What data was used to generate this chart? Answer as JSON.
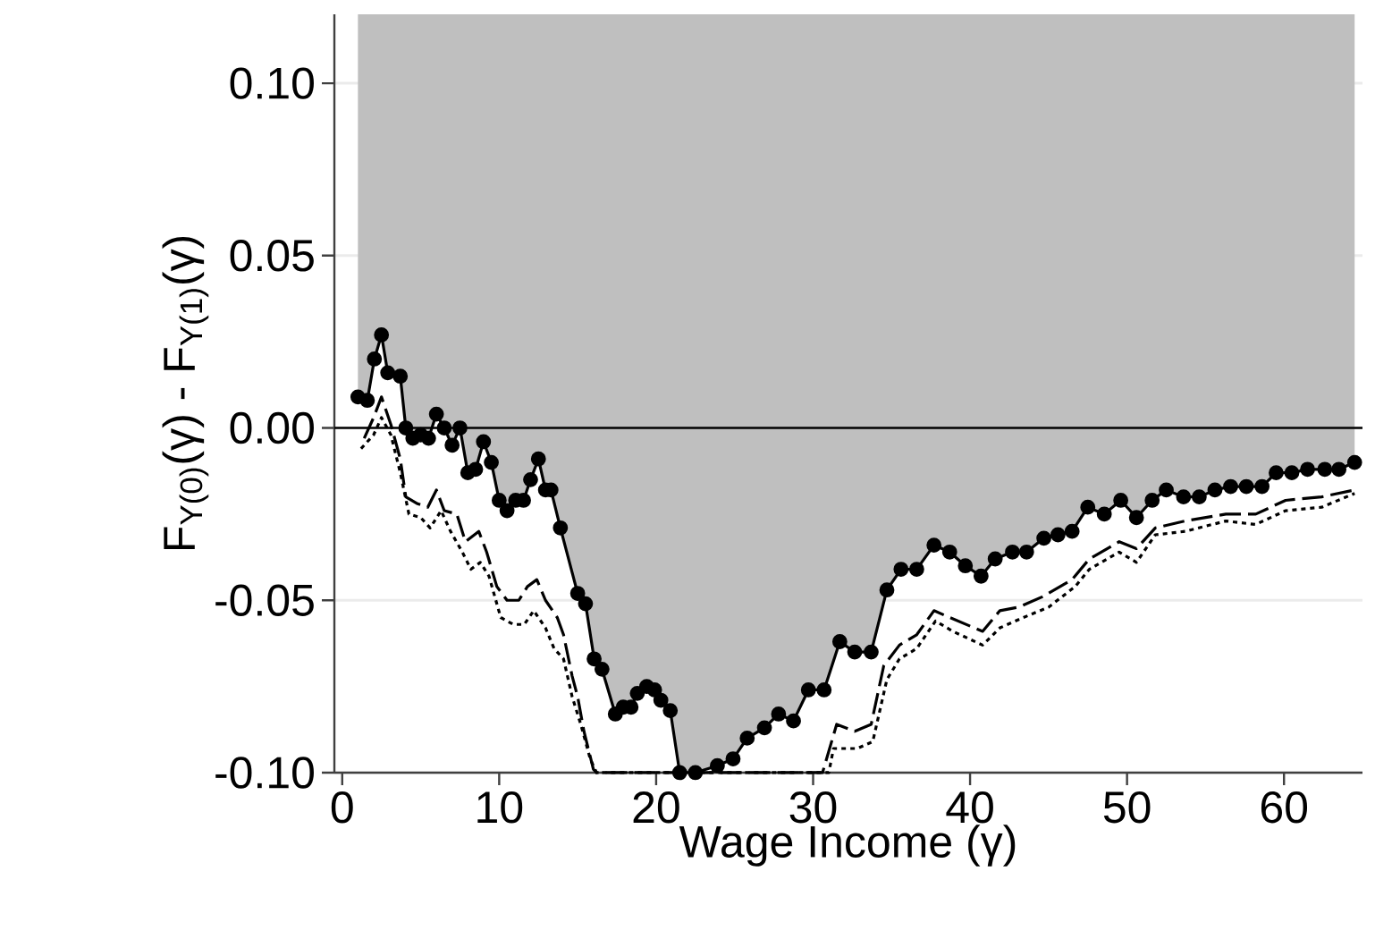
{
  "chart_data": {
    "type": "line",
    "xlabel": "Wage Income (γ)",
    "ylabel": "F$_{Y(0)}$(γ) - F$_{Y(1)}$(γ)",
    "xlim": [
      -0.5,
      65
    ],
    "ylim": [
      -0.1,
      0.12
    ],
    "xticks": [
      0,
      10,
      20,
      30,
      40,
      50,
      60
    ],
    "yticks": [
      {
        "value": -0.1,
        "label": "-0.10"
      },
      {
        "value": -0.05,
        "label": "-0.05"
      },
      {
        "value": 0.0,
        "label": "0.00"
      },
      {
        "value": 0.05,
        "label": "0.05"
      },
      {
        "value": 0.1,
        "label": "0.10"
      }
    ],
    "grid": "y",
    "ref_lines": [
      {
        "axis": "y",
        "value": 0,
        "color": "#000000"
      }
    ],
    "series": [
      {
        "color": "#000000",
        "marker": "circle",
        "line_style": "solid",
        "x": [
          1.0,
          1.6,
          2.05,
          2.5,
          2.9,
          3.7,
          4.05,
          4.5,
          5.0,
          5.5,
          6.0,
          6.5,
          7.0,
          7.5,
          8.0,
          8.5,
          9.0,
          9.5,
          10.0,
          10.5,
          11.05,
          11.55,
          12.0,
          12.5,
          12.95,
          13.3,
          13.9,
          15.0,
          15.5,
          16.05,
          16.55,
          17.4,
          17.9,
          18.4,
          18.8,
          19.4,
          19.9,
          20.3,
          20.9,
          21.5,
          22.5,
          23.9,
          24.9,
          25.8,
          26.9,
          27.8,
          28.75,
          29.7,
          30.7,
          31.7,
          32.65,
          33.7,
          34.7,
          35.6,
          36.6,
          37.7,
          38.7,
          39.7,
          40.7,
          41.6,
          42.7,
          43.6,
          44.7,
          45.6,
          46.5,
          47.5,
          48.55,
          49.6,
          50.6,
          51.6,
          52.5,
          53.6,
          54.6,
          55.6,
          56.6,
          57.6,
          58.6,
          59.5,
          60.5,
          61.5,
          62.6,
          63.5,
          64.5
        ],
        "values": [
          0.009,
          0.008,
          0.02,
          0.027,
          0.016,
          0.015,
          0.0,
          -0.003,
          -0.002,
          -0.003,
          0.004,
          0.0,
          -0.005,
          0.0,
          -0.013,
          -0.012,
          -0.004,
          -0.01,
          -0.021,
          -0.024,
          -0.021,
          -0.021,
          -0.015,
          -0.009,
          -0.018,
          -0.018,
          -0.029,
          -0.048,
          -0.051,
          -0.067,
          -0.07,
          -0.083,
          -0.081,
          -0.081,
          -0.077,
          -0.075,
          -0.076,
          -0.079,
          -0.082,
          -0.1,
          -0.1,
          -0.098,
          -0.096,
          -0.09,
          -0.087,
          -0.083,
          -0.085,
          -0.076,
          -0.076,
          -0.062,
          -0.065,
          -0.065,
          -0.047,
          -0.041,
          -0.041,
          -0.034,
          -0.036,
          -0.04,
          -0.043,
          -0.038,
          -0.036,
          -0.036,
          -0.032,
          -0.031,
          -0.03,
          -0.023,
          -0.025,
          -0.021,
          -0.026,
          -0.021,
          -0.018,
          -0.02,
          -0.02,
          -0.018,
          -0.017,
          -0.017,
          -0.017,
          -0.013,
          -0.013,
          -0.012,
          -0.012,
          -0.012,
          -0.01
        ],
        "lower": [
          0.009,
          0.008,
          0.02,
          0.027,
          0.016,
          0.015,
          0.0,
          -0.003,
          -0.002,
          -0.003,
          0.004,
          0.0,
          -0.005,
          0.0,
          -0.013,
          -0.012,
          -0.004,
          -0.01,
          -0.021,
          -0.024,
          -0.021,
          -0.021,
          -0.015,
          -0.009,
          -0.018,
          -0.018,
          -0.029,
          -0.048,
          -0.051,
          -0.067,
          -0.07,
          -0.083,
          -0.081,
          -0.081,
          -0.077,
          -0.075,
          -0.076,
          -0.079,
          -0.082,
          -0.1,
          -0.1,
          -0.098,
          -0.096,
          -0.09,
          -0.087,
          -0.083,
          -0.085,
          -0.076,
          -0.076,
          -0.062,
          -0.065,
          -0.065,
          -0.047,
          -0.041,
          -0.041,
          -0.034,
          -0.036,
          -0.04,
          -0.043,
          -0.038,
          -0.036,
          -0.036,
          -0.032,
          -0.031,
          -0.03,
          -0.023,
          -0.025,
          -0.021,
          -0.026,
          -0.021,
          -0.018,
          -0.02,
          -0.02,
          -0.018,
          -0.017,
          -0.017,
          -0.017,
          -0.013,
          -0.013,
          -0.012,
          -0.012,
          -0.012,
          -0.01
        ],
        "upper": [
          0.12,
          0.12,
          0.12,
          0.12,
          0.12,
          0.12,
          0.12,
          0.12,
          0.12,
          0.12,
          0.12,
          0.12,
          0.12,
          0.12,
          0.12,
          0.12,
          0.12,
          0.12,
          0.12,
          0.12,
          0.12,
          0.12,
          0.12,
          0.12,
          0.12,
          0.12,
          0.12,
          0.12,
          0.12,
          0.12,
          0.12,
          0.12,
          0.12,
          0.12,
          0.12,
          0.12,
          0.12,
          0.12,
          0.12,
          0.12,
          0.12,
          0.12,
          0.12,
          0.12,
          0.12,
          0.12,
          0.12,
          0.12,
          0.12,
          0.12,
          0.12,
          0.12,
          0.12,
          0.12,
          0.12,
          0.12,
          0.12,
          0.12,
          0.12,
          0.12,
          0.12,
          0.12,
          0.12,
          0.12,
          0.12,
          0.12,
          0.12,
          0.12,
          0.12,
          0.12,
          0.12,
          0.12,
          0.12,
          0.12,
          0.12,
          0.12,
          0.12,
          0.12,
          0.12,
          0.12,
          0.12,
          0.12,
          0.12
        ]
      },
      {
        "color": "#000000",
        "marker": "none",
        "line_style": "dashed",
        "x": [
          1.4,
          2.0,
          2.5,
          3.1,
          3.7,
          4.05,
          4.8,
          5.45,
          6.0,
          6.5,
          7.3,
          7.85,
          8.7,
          9.2,
          9.85,
          10.5,
          11.25,
          11.8,
          12.4,
          12.95,
          13.7,
          14.1,
          14.65,
          15.0,
          15.4,
          16.0,
          16.2,
          30.6,
          31.5,
          32.65,
          33.7,
          34.5,
          35.5,
          36.6,
          37.7,
          38.7,
          40.8,
          41.9,
          43.1,
          44.6,
          46.5,
          47.6,
          49.5,
          50.6,
          51.8,
          53.7,
          56.3,
          58.2,
          60.1,
          62.4,
          64.5
        ],
        "values": [
          -0.003,
          0.003,
          0.009,
          0.001,
          -0.009,
          -0.02,
          -0.022,
          -0.023,
          -0.018,
          -0.024,
          -0.025,
          -0.033,
          -0.03,
          -0.036,
          -0.046,
          -0.05,
          -0.05,
          -0.046,
          -0.044,
          -0.05,
          -0.055,
          -0.06,
          -0.072,
          -0.078,
          -0.088,
          -0.099,
          -0.1,
          -0.1,
          -0.086,
          -0.088,
          -0.086,
          -0.069,
          -0.063,
          -0.06,
          -0.053,
          -0.055,
          -0.059,
          -0.053,
          -0.052,
          -0.049,
          -0.044,
          -0.038,
          -0.033,
          -0.035,
          -0.029,
          -0.027,
          -0.025,
          -0.025,
          -0.021,
          -0.02,
          -0.018
        ]
      },
      {
        "color": "#000000",
        "marker": "none",
        "line_style": "dotted",
        "x": [
          1.2,
          2.0,
          2.5,
          3.1,
          3.7,
          4.25,
          5.0,
          5.6,
          6.3,
          6.9,
          7.65,
          8.2,
          8.8,
          9.35,
          10.1,
          10.9,
          11.6,
          12.2,
          12.95,
          13.5,
          14.1,
          14.65,
          15.2,
          15.8,
          16.2,
          31.0,
          31.3,
          32.8,
          33.8,
          34.7,
          35.5,
          36.6,
          37.8,
          38.9,
          40.8,
          41.9,
          43.4,
          45.0,
          46.7,
          47.6,
          49.5,
          50.6,
          51.8,
          53.7,
          56.3,
          58.2,
          60.1,
          62.4,
          64.5
        ],
        "values": [
          -0.006,
          -0.002,
          0.003,
          -0.002,
          -0.013,
          -0.025,
          -0.026,
          -0.029,
          -0.024,
          -0.03,
          -0.036,
          -0.041,
          -0.039,
          -0.043,
          -0.055,
          -0.057,
          -0.057,
          -0.053,
          -0.058,
          -0.064,
          -0.067,
          -0.078,
          -0.086,
          -0.096,
          -0.1,
          -0.1,
          -0.093,
          -0.093,
          -0.091,
          -0.073,
          -0.067,
          -0.064,
          -0.056,
          -0.059,
          -0.063,
          -0.058,
          -0.055,
          -0.052,
          -0.046,
          -0.041,
          -0.036,
          -0.039,
          -0.031,
          -0.03,
          -0.027,
          -0.028,
          -0.024,
          -0.023,
          -0.019
        ]
      }
    ]
  }
}
